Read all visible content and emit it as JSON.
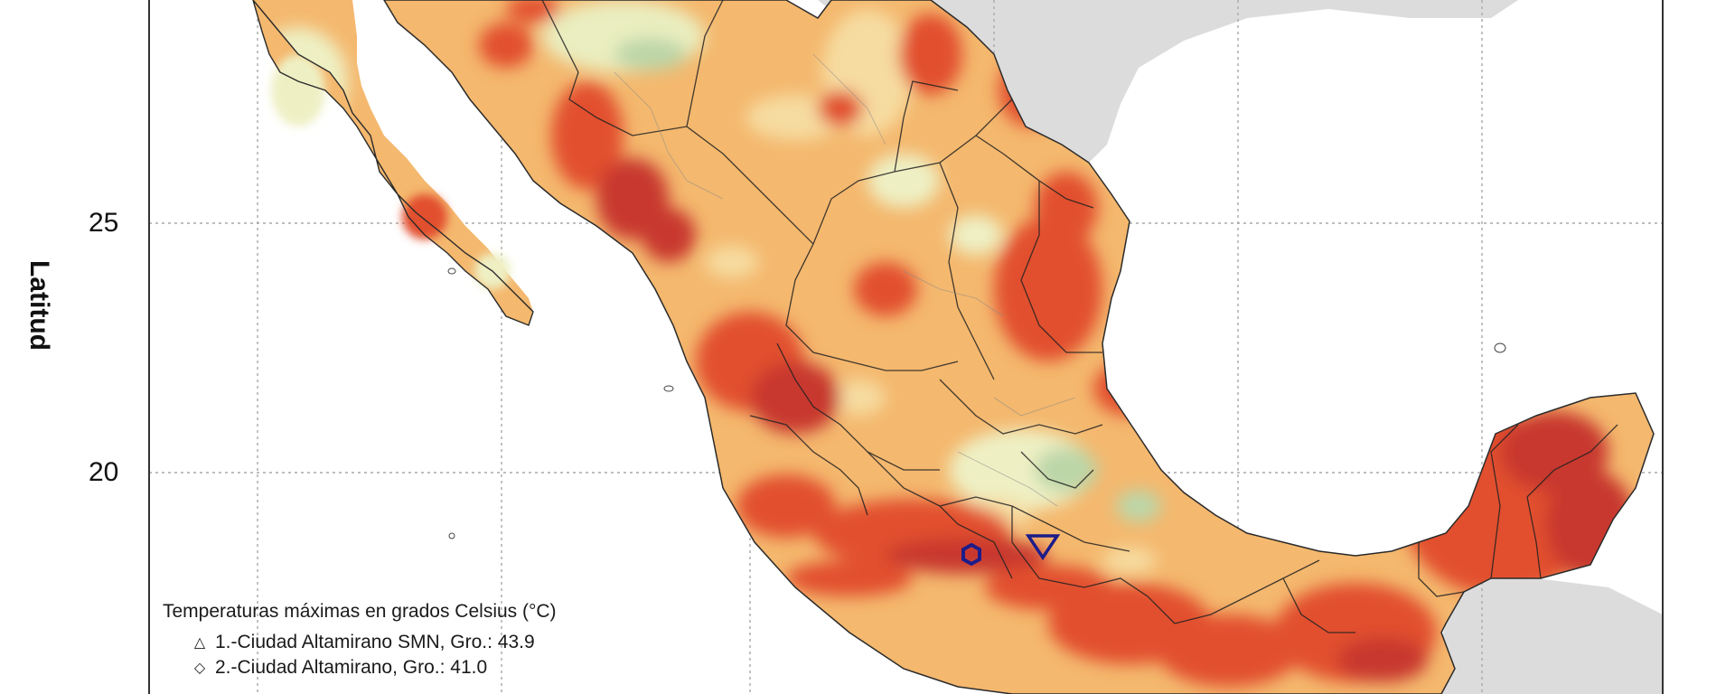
{
  "axes": {
    "ylabel": "Latitud",
    "yticks": [
      "25",
      "20"
    ]
  },
  "legend": {
    "title": "Temperaturas máximas en grados Celsius (°C)",
    "items": [
      {
        "symbol": "triangle-icon",
        "glyph": "△",
        "label": "1.-Ciudad Altamirano SMN, Gro.: 43.9"
      },
      {
        "symbol": "diamond-icon",
        "glyph": "◇",
        "label": "2.-Ciudad Altamirano, Gro.: 41.0"
      }
    ]
  },
  "colors": {
    "land_base": "#f4b86e",
    "hot": "#e2502f",
    "very_hot": "#c8372d",
    "mild": "#f7dba0",
    "cool": "#e8ecc0",
    "green": "#bcd6a8",
    "sea": "#ffffff",
    "neighbor_land": "#dcdcdc",
    "grid": "#9a9a9a",
    "markers": "#1c1c8a"
  },
  "markers": [
    {
      "name": "hexagon-marker"
    },
    {
      "name": "inverted-triangle-marker"
    }
  ]
}
